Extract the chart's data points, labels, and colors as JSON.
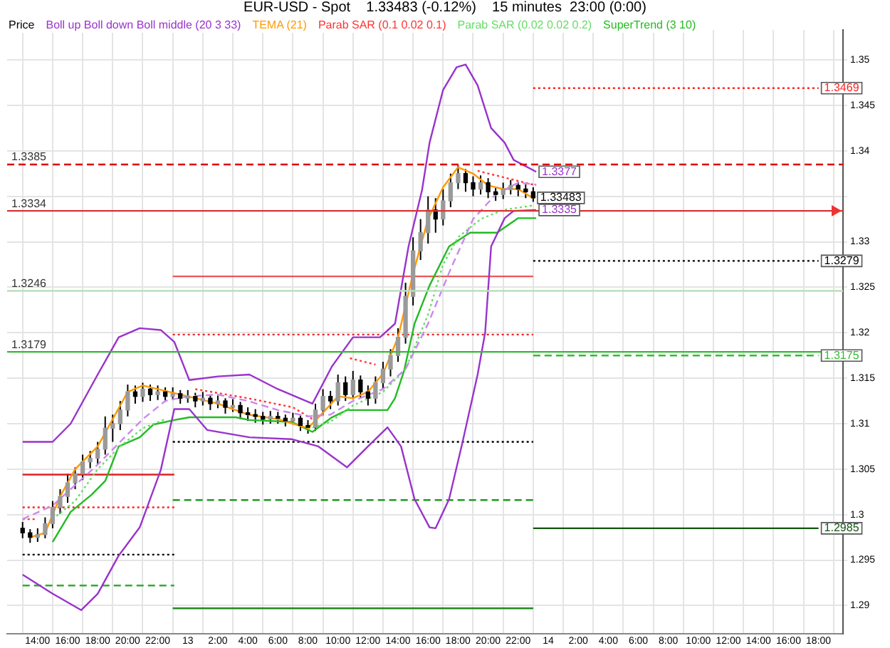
{
  "chart_data": {
    "type": "candlestick",
    "title": "EUR-USD - Spot    1.33483 (-0.12%)    15 minutes  23:00 (0:00)",
    "xlim": [
      "--01-12T13:00",
      "--01-14T18:36"
    ],
    "ylim": [
      1.2869,
      1.3533
    ],
    "xticks": [
      {
        "value": "--01-12T14:00",
        "label": "14:00"
      },
      {
        "value": "--01-12T16:00",
        "label": "16:00"
      },
      {
        "value": "--01-12T18:00",
        "label": "18:00"
      },
      {
        "value": "--01-12T20:00",
        "label": "20:00"
      },
      {
        "value": "--01-12T22:00",
        "label": "22:00"
      },
      {
        "value": "--01-13T00:00",
        "label": "13"
      },
      {
        "value": "--01-13T02:00",
        "label": "2:00"
      },
      {
        "value": "--01-13T04:00",
        "label": "4:00"
      },
      {
        "value": "--01-13T06:00",
        "label": "6:00"
      },
      {
        "value": "--01-13T08:00",
        "label": "8:00"
      },
      {
        "value": "--01-13T10:00",
        "label": "10:00"
      },
      {
        "value": "--01-13T12:00",
        "label": "12:00"
      },
      {
        "value": "--01-13T14:00",
        "label": "14:00"
      },
      {
        "value": "--01-13T16:00",
        "label": "16:00"
      },
      {
        "value": "--01-13T18:00",
        "label": "18:00"
      },
      {
        "value": "--01-13T20:00",
        "label": "20:00"
      },
      {
        "value": "--01-13T22:00",
        "label": "22:00"
      },
      {
        "value": "--01-14T00:00",
        "label": "14"
      },
      {
        "value": "--01-14T02:00",
        "label": "2:00"
      },
      {
        "value": "--01-14T04:00",
        "label": "4:00"
      },
      {
        "value": "--01-14T06:00",
        "label": "6:00"
      },
      {
        "value": "--01-14T08:00",
        "label": "8:00"
      },
      {
        "value": "--01-14T10:00",
        "label": "10:00"
      },
      {
        "value": "--01-14T12:00",
        "label": "12:00"
      },
      {
        "value": "--01-14T14:00",
        "label": "14:00"
      },
      {
        "value": "--01-14T16:00",
        "label": "16:00"
      },
      {
        "value": "--01-14T18:00",
        "label": "18:00"
      }
    ],
    "yticks": [
      1.29,
      1.295,
      1.3,
      1.305,
      1.31,
      1.315,
      1.32,
      1.325,
      1.33,
      {
        "value": 1.335,
        "label": null
      },
      1.34,
      1.345,
      1.35
    ],
    "grid": true,
    "legend": "top left",
    "marker": "none",
    "series": [
      {
        "name": "Price",
        "type": "candlestick",
        "color": "#000000",
        "colors": [
          "#000000",
          "#000000",
          "#9a9a9a",
          "#9a9a9a",
          "#9a9a9a",
          "#9a9a9a",
          "#9a9a9a",
          "#9a9a9a",
          "#9a9a9a",
          "#9a9a9a",
          "#9a9a9a",
          "#9a9a9a",
          "#9a9a9a",
          "#9a9a9a",
          "#9a9a9a",
          "#000000",
          "#9a9a9a",
          "#000000",
          "#9a9a9a",
          "#000000",
          "#9a9a9a",
          "#000000",
          "#9a9a9a",
          "#000000",
          "#9a9a9a",
          "#000000",
          "#9a9a9a",
          "#000000",
          "#9a9a9a",
          "#000000",
          "#000000",
          "#000000",
          "#000000",
          "#9a9a9a",
          "#000000",
          "#000000",
          "#9a9a9a",
          "#000000",
          "#000000",
          "#9a9a9a",
          "#9a9a9a",
          "#000000",
          "#9a9a9a",
          "#000000",
          "#9a9a9a",
          "#000000",
          "#000000",
          "#9a9a9a",
          "#9a9a9a",
          "#9a9a9a",
          "#9a9a9a",
          "#9a9a9a",
          "#9a9a9a",
          "#9a9a9a",
          "#9a9a9a",
          "#000000",
          "#9a9a9a",
          "#9a9a9a",
          "#9a9a9a",
          "#000000",
          "#000000",
          "#9a9a9a",
          "#000000",
          "#000000",
          "#9a9a9a",
          "#9a9a9a",
          "#000000",
          "#000000",
          "#000000"
        ],
        "x": [
          "--01-12T13:00",
          "--01-12T13:30",
          "--01-12T14:00",
          "--01-12T14:30",
          "--01-12T15:00",
          "--01-12T15:30",
          "--01-12T16:00",
          "--01-12T16:30",
          "--01-12T17:00",
          "--01-12T17:30",
          "--01-12T18:00",
          "--01-12T18:30",
          "--01-12T19:00",
          "--01-12T19:30",
          "--01-12T20:00",
          "--01-12T20:30",
          "--01-12T21:00",
          "--01-12T21:30",
          "--01-12T22:00",
          "--01-12T22:30",
          "--01-12T23:00",
          "--01-12T23:30",
          "--01-13T00:00",
          "--01-13T00:30",
          "--01-13T01:00",
          "--01-13T01:30",
          "--01-13T02:00",
          "--01-13T02:30",
          "--01-13T03:00",
          "--01-13T03:30",
          "--01-13T04:00",
          "--01-13T04:30",
          "--01-13T05:00",
          "--01-13T05:30",
          "--01-13T06:00",
          "--01-13T06:30",
          "--01-13T07:00",
          "--01-13T07:30",
          "--01-13T08:00",
          "--01-13T08:30",
          "--01-13T09:00",
          "--01-13T09:30",
          "--01-13T10:00",
          "--01-13T10:30",
          "--01-13T11:00",
          "--01-13T11:30",
          "--01-13T12:00",
          "--01-13T12:30",
          "--01-13T13:00",
          "--01-13T13:30",
          "--01-13T14:00",
          "--01-13T14:30",
          "--01-13T15:00",
          "--01-13T15:30",
          "--01-13T16:00",
          "--01-13T16:30",
          "--01-13T17:00",
          "--01-13T17:30",
          "--01-13T18:00",
          "--01-13T18:30",
          "--01-13T19:00",
          "--01-13T19:30",
          "--01-13T20:00",
          "--01-13T20:30",
          "--01-13T21:00",
          "--01-13T21:30",
          "--01-13T22:00",
          "--01-13T22:30",
          "--01-13T23:00"
        ],
        "ohlc": [
          [
            1.2985,
            1.2992,
            1.2974,
            1.298
          ],
          [
            1.298,
            1.2984,
            1.2969,
            1.2975
          ],
          [
            1.2975,
            1.2985,
            1.297,
            1.2978
          ],
          [
            1.2978,
            1.2997,
            1.2974,
            1.299
          ],
          [
            1.299,
            1.3015,
            1.2985,
            1.3008
          ],
          [
            1.3008,
            1.3028,
            1.3001,
            1.302
          ],
          [
            1.302,
            1.3045,
            1.3013,
            1.3035
          ],
          [
            1.3035,
            1.3052,
            1.3028,
            1.3045
          ],
          [
            1.3045,
            1.3066,
            1.3038,
            1.3058
          ],
          [
            1.3058,
            1.307,
            1.3051,
            1.3062
          ],
          [
            1.3062,
            1.308,
            1.3055,
            1.3072
          ],
          [
            1.3072,
            1.3108,
            1.3066,
            1.3095
          ],
          [
            1.3095,
            1.311,
            1.308,
            1.31
          ],
          [
            1.31,
            1.3125,
            1.3093,
            1.3115
          ],
          [
            1.3115,
            1.3143,
            1.3108,
            1.3135
          ],
          [
            1.3135,
            1.3142,
            1.3122,
            1.313
          ],
          [
            1.313,
            1.3145,
            1.3124,
            1.3138
          ],
          [
            1.3138,
            1.3143,
            1.3125,
            1.3132
          ],
          [
            1.3132,
            1.3142,
            1.3126,
            1.3135
          ],
          [
            1.3135,
            1.314,
            1.3124,
            1.313
          ],
          [
            1.313,
            1.314,
            1.3126,
            1.3133
          ],
          [
            1.3133,
            1.3137,
            1.3122,
            1.3128
          ],
          [
            1.3128,
            1.3137,
            1.3123,
            1.313
          ],
          [
            1.313,
            1.3134,
            1.3118,
            1.3125
          ],
          [
            1.3125,
            1.3135,
            1.312,
            1.3128
          ],
          [
            1.3128,
            1.3132,
            1.3115,
            1.3122
          ],
          [
            1.3122,
            1.3131,
            1.3117,
            1.3125
          ],
          [
            1.3125,
            1.3128,
            1.3111,
            1.3118
          ],
          [
            1.3118,
            1.3127,
            1.3113,
            1.312
          ],
          [
            1.312,
            1.3124,
            1.3105,
            1.3112
          ],
          [
            1.3112,
            1.3118,
            1.3103,
            1.311
          ],
          [
            1.311,
            1.3116,
            1.3101,
            1.3108
          ],
          [
            1.3108,
            1.3113,
            1.3099,
            1.3105
          ],
          [
            1.3105,
            1.3114,
            1.31,
            1.3108
          ],
          [
            1.3108,
            1.3113,
            1.31,
            1.3106
          ],
          [
            1.3106,
            1.311,
            1.3097,
            1.3103
          ],
          [
            1.3103,
            1.3112,
            1.3099,
            1.3106
          ],
          [
            1.3106,
            1.3109,
            1.3092,
            1.3098
          ],
          [
            1.3098,
            1.3104,
            1.3089,
            1.3096
          ],
          [
            1.3096,
            1.3122,
            1.3092,
            1.3115
          ],
          [
            1.3115,
            1.3138,
            1.3109,
            1.313
          ],
          [
            1.313,
            1.3136,
            1.3116,
            1.3125
          ],
          [
            1.3125,
            1.3154,
            1.312,
            1.3145
          ],
          [
            1.3145,
            1.3152,
            1.3125,
            1.3132
          ],
          [
            1.3132,
            1.3158,
            1.3127,
            1.3148
          ],
          [
            1.3148,
            1.3153,
            1.3128,
            1.3135
          ],
          [
            1.3135,
            1.3142,
            1.312,
            1.3128
          ],
          [
            1.3128,
            1.3152,
            1.3122,
            1.3145
          ],
          [
            1.3145,
            1.3168,
            1.3138,
            1.316
          ],
          [
            1.316,
            1.3182,
            1.3152,
            1.3175
          ],
          [
            1.3175,
            1.3205,
            1.3168,
            1.3195
          ],
          [
            1.3195,
            1.3255,
            1.3188,
            1.324
          ],
          [
            1.324,
            1.3305,
            1.323,
            1.329
          ],
          [
            1.329,
            1.3325,
            1.328,
            1.331
          ],
          [
            1.331,
            1.335,
            1.3298,
            1.3335
          ],
          [
            1.3335,
            1.3348,
            1.331,
            1.3325
          ],
          [
            1.3325,
            1.3358,
            1.3318,
            1.3345
          ],
          [
            1.3345,
            1.3375,
            1.3338,
            1.3365
          ],
          [
            1.3365,
            1.3384,
            1.3358,
            1.3375
          ],
          [
            1.3375,
            1.338,
            1.3355,
            1.3365
          ],
          [
            1.3365,
            1.3372,
            1.335,
            1.3358
          ],
          [
            1.3358,
            1.3373,
            1.3352,
            1.3365
          ],
          [
            1.3365,
            1.337,
            1.3348,
            1.3355
          ],
          [
            1.3355,
            1.336,
            1.3345,
            1.3352
          ],
          [
            1.3352,
            1.3365,
            1.3347,
            1.3358
          ],
          [
            1.3358,
            1.3368,
            1.3352,
            1.3362
          ],
          [
            1.3362,
            1.3366,
            1.335,
            1.3358
          ],
          [
            1.3358,
            1.3363,
            1.3348,
            1.3355
          ],
          [
            1.3355,
            1.336,
            1.3344,
            1.33483
          ]
        ],
        "value_labels": [
          null,
          null,
          null,
          null,
          null,
          null,
          null,
          null,
          null,
          null,
          null,
          null,
          null,
          null,
          null,
          null,
          null,
          null,
          null,
          null,
          null,
          null,
          null,
          null,
          null,
          null,
          null,
          null,
          null,
          null,
          null,
          null,
          null,
          null,
          null,
          null,
          null,
          null,
          null,
          null,
          null,
          null,
          null,
          null,
          null,
          null,
          null,
          null,
          null,
          null,
          null,
          null,
          null,
          null,
          null,
          null,
          null,
          null,
          null,
          null,
          null,
          null,
          null,
          null,
          null,
          null,
          null,
          null,
          "1.33483"
        ]
      },
      {
        "name": "Boll up Boll down Boll middle (20 3 33)",
        "type": "line",
        "color": "#9933cc",
        "x": [
          "--01-12T13:00",
          "--01-12T15:00",
          "--01-12T16:12",
          "--01-12T18:00",
          "--01-12T19:24",
          "--01-12T20:48",
          "--01-12T22:12",
          "--01-12T23:06",
          "--01-13T00:06",
          "--01-13T02:00",
          "--01-13T04:06",
          "--01-13T06:00",
          "--01-13T08:18",
          "--01-13T09:36",
          "--01-13T11:00",
          "--01-13T12:48",
          "--01-13T13:48",
          "--01-13T14:42",
          "--01-13T15:36",
          "--01-13T16:06",
          "--01-13T17:00",
          "--01-13T17:54",
          "--01-13T18:30",
          "--01-13T19:18",
          "--01-13T20:12",
          "--01-13T21:06",
          "--01-13T21:42",
          "--01-13T23:12"
        ],
        "values": [
          1.308,
          1.308,
          1.31,
          1.3154,
          1.3195,
          1.3205,
          1.3203,
          1.319,
          1.3148,
          1.3152,
          1.3154,
          1.3138,
          1.3122,
          1.3163,
          1.3195,
          1.3195,
          1.321,
          1.3295,
          1.3357,
          1.3409,
          1.3467,
          1.3492,
          1.3495,
          1.3472,
          1.3425,
          1.3409,
          1.339,
          1.3377
        ],
        "value_labels": [
          null,
          null,
          null,
          null,
          null,
          null,
          null,
          null,
          null,
          null,
          null,
          null,
          null,
          null,
          null,
          null,
          null,
          null,
          null,
          null,
          null,
          null,
          null,
          null,
          null,
          null,
          null,
          "1.3377"
        ]
      },
      {
        "type": "line",
        "color": "#9933cc",
        "x": [
          "--01-12T13:00",
          "--01-12T15:00",
          "--01-12T16:54",
          "--01-12T18:00",
          "--01-12T19:24",
          "--01-12T20:48",
          "--01-12T22:12",
          "--01-12T23:06",
          "--01-13T00:06",
          "--01-13T01:18",
          "--01-13T04:06",
          "--01-13T06:54",
          "--01-13T08:42",
          "--01-13T10:36",
          "--01-13T12:00",
          "--01-13T13:18",
          "--01-13T14:12",
          "--01-13T15:06",
          "--01-13T16:06",
          "--01-13T16:30",
          "--01-13T17:24",
          "--01-13T18:18",
          "--01-13T19:18",
          "--01-13T19:48",
          "--01-13T20:12",
          "--01-13T21:06",
          "--01-13T21:42",
          "--01-13T23:12"
        ],
        "values": [
          1.2934,
          1.2913,
          1.2895,
          1.2913,
          1.2955,
          1.2986,
          1.3049,
          1.3116,
          1.3116,
          1.3093,
          1.3085,
          1.3083,
          1.3075,
          1.3052,
          1.3075,
          1.3096,
          1.3075,
          1.3017,
          1.2986,
          1.2985,
          1.3017,
          1.308,
          1.3154,
          1.32,
          1.3295,
          1.3326,
          1.3334,
          1.3335
        ],
        "value_labels": [
          null,
          null,
          null,
          null,
          null,
          null,
          null,
          null,
          null,
          null,
          null,
          null,
          null,
          null,
          null,
          null,
          null,
          null,
          null,
          null,
          null,
          null,
          null,
          null,
          null,
          null,
          null,
          "1.3335"
        ]
      },
      {
        "type": "line",
        "color": "#cc88ee",
        "line_style": "dashed",
        "x": [
          "--01-12T13:00",
          "--01-12T15:00",
          "--01-12T16:00",
          "--01-12T18:00",
          "--01-12T19:30",
          "--01-12T21:00",
          "--01-12T22:30",
          "--01-13T00:00",
          "--01-13T02:00",
          "--01-13T04:00",
          "--01-13T06:00",
          "--01-13T08:00",
          "--01-13T09:30",
          "--01-13T11:00",
          "--01-13T13:00",
          "--01-13T14:30",
          "--01-13T16:00",
          "--01-13T17:30",
          "--01-13T19:00",
          "--01-13T20:30",
          "--01-13T22:00",
          "--01-13T23:12"
        ],
        "values": [
          1.2995,
          1.301,
          1.3025,
          1.3055,
          1.308,
          1.3105,
          1.3125,
          1.313,
          1.3132,
          1.3125,
          1.3115,
          1.3108,
          1.311,
          1.3125,
          1.3138,
          1.316,
          1.321,
          1.327,
          1.3325,
          1.3352,
          1.3365,
          1.3363
        ]
      },
      {
        "name": "TEMA (21)",
        "type": "line",
        "color": "#ff9900",
        "x": [
          "--01-12T13:30",
          "--01-12T14:30",
          "--01-12T15:30",
          "--01-12T16:30",
          "--01-12T18:00",
          "--01-12T19:00",
          "--01-12T20:00",
          "--01-12T21:00",
          "--01-12T22:00",
          "--01-13T00:00",
          "--01-13T02:00",
          "--01-13T04:00",
          "--01-13T06:00",
          "--01-13T08:00",
          "--01-13T09:00",
          "--01-13T10:00",
          "--01-13T11:00",
          "--01-13T12:00",
          "--01-13T13:00",
          "--01-13T14:00",
          "--01-13T15:00",
          "--01-13T16:00",
          "--01-13T17:00",
          "--01-13T18:00",
          "--01-13T19:00",
          "--01-13T20:00",
          "--01-13T21:00",
          "--01-13T22:00",
          "--01-13T23:00"
        ],
        "values": [
          1.2975,
          1.298,
          1.302,
          1.305,
          1.3075,
          1.3105,
          1.3135,
          1.3142,
          1.3138,
          1.313,
          1.3122,
          1.311,
          1.3105,
          1.3095,
          1.3112,
          1.313,
          1.3128,
          1.3135,
          1.3155,
          1.3195,
          1.3265,
          1.3325,
          1.336,
          1.3382,
          1.3375,
          1.3362,
          1.3358,
          1.3358,
          1.3348
        ]
      },
      {
        "name": "Parab SAR (0.1 0.02 0.1)",
        "type": "line",
        "color": "#ff3333",
        "line_style": "dotted",
        "x": [
          "--01-12T13:00",
          "--01-12T14:00",
          "--01-12T14:06",
          "--01-13T00:30",
          "--01-13T04:00",
          "--01-13T07:00",
          "--01-13T08:18",
          "--01-13T08:24",
          "--01-13T10:48",
          "--01-13T12:30",
          "--01-13T12:36",
          "--01-13T19:18",
          "--01-13T23:12"
        ],
        "values": [
          1.2995,
          1.2995,
          null,
          1.3138,
          1.3128,
          1.3118,
          1.3105,
          null,
          1.3172,
          1.3165,
          null,
          1.3378,
          1.3362
        ]
      },
      {
        "name": "Parab SAR (0.02 0.02 0.2)",
        "type": "line",
        "color": "#66dd66",
        "line_style": "dotted",
        "x": [
          "--01-12T15:00",
          "--01-12T16:30",
          "--01-12T18:00",
          "--01-12T19:30",
          "--01-12T21:00",
          "--01-12T22:30",
          "--01-12T22:36",
          "--01-13T08:00",
          "--01-13T09:30",
          "--01-13T11:00",
          "--01-13T13:00",
          "--01-13T14:30",
          "--01-13T16:00",
          "--01-13T17:00",
          "--01-13T18:00",
          "--01-13T19:30",
          "--01-13T21:00",
          "--01-13T23:00"
        ],
        "values": [
          1.2995,
          1.3015,
          1.305,
          1.3075,
          1.3095,
          1.3105,
          null,
          1.3094,
          1.3102,
          1.312,
          1.3135,
          1.316,
          1.322,
          1.3275,
          1.3305,
          1.3325,
          1.3335,
          1.334
        ]
      },
      {
        "name": "SuperTrend (3 10)",
        "type": "line",
        "color": "#22bb22",
        "x": [
          "--01-12T15:00",
          "--01-12T16:12",
          "--01-12T17:36",
          "--01-12T18:30",
          "--01-12T19:24",
          "--01-12T20:48",
          "--01-12T21:42",
          "--01-12T23:06",
          "--01-13T00:06",
          "--01-13T03:12",
          "--01-13T04:06",
          "--01-13T06:54",
          "--01-13T08:18",
          "--01-13T09:36",
          "--01-13T10:36",
          "--01-13T13:18",
          "--01-13T13:48",
          "--01-13T14:24",
          "--01-13T15:06",
          "--01-13T16:06",
          "--01-13T17:24",
          "--01-13T18:48",
          "--01-13T20:36",
          "--01-13T22:00",
          "--01-13T23:12"
        ],
        "values": [
          1.297,
          1.3003,
          1.3022,
          1.3037,
          1.3075,
          1.3085,
          1.3099,
          1.3104,
          1.3107,
          1.3107,
          1.3104,
          1.3102,
          1.3091,
          1.3107,
          1.3115,
          1.3115,
          1.3128,
          1.3158,
          1.321,
          1.3252,
          1.3295,
          1.331,
          1.331,
          1.3326,
          1.3326
        ]
      },
      {
        "type": "line",
        "color": "#dd2222",
        "x": [
          "--01-12T13:00",
          "--01-12T23:06"
        ],
        "values": [
          1.3044,
          1.3044
        ]
      },
      {
        "type": "line",
        "color": "#ff2222",
        "line_style": "dotted",
        "x": [
          "--01-12T13:00",
          "--01-12T23:06"
        ],
        "values": [
          1.3008,
          1.3008
        ]
      },
      {
        "type": "line",
        "color": "#000000",
        "line_style": "dotted",
        "x": [
          "--01-12T13:00",
          "--01-12T23:06"
        ],
        "values": [
          1.2956,
          1.2956
        ]
      },
      {
        "type": "line",
        "color": "#33aa33",
        "line_style": "dashed",
        "x": [
          "--01-12T13:00",
          "--01-12T23:06"
        ],
        "values": [
          1.2922,
          1.2922
        ]
      },
      {
        "type": "line",
        "color": "#ee5555",
        "x": [
          "--01-12T23:00",
          "--01-13T23:00"
        ],
        "values": [
          1.3262,
          1.3262
        ]
      },
      {
        "type": "line",
        "color": "#ee2222",
        "line_style": "dotted",
        "x": [
          "--01-12T23:00",
          "--01-13T23:00"
        ],
        "values": [
          1.3198,
          1.3198
        ]
      },
      {
        "type": "line",
        "color": "#000000",
        "line_style": "dotted",
        "x": [
          "--01-12T23:00",
          "--01-13T23:00"
        ],
        "values": [
          1.308,
          1.308
        ]
      },
      {
        "type": "line",
        "color": "#229922",
        "line_style": "dashed",
        "x": [
          "--01-12T23:00",
          "--01-13T23:00"
        ],
        "values": [
          1.3016,
          1.3016
        ]
      },
      {
        "type": "line",
        "color": "#228822",
        "x": [
          "--01-12T23:00",
          "--01-13T23:00"
        ],
        "values": [
          1.2897,
          1.2897
        ]
      },
      {
        "type": "line",
        "color": "#ff2222",
        "line_style": "dotted",
        "x": [
          "--01-13T23:00",
          "--01-14T18:00"
        ],
        "values": [
          1.3469,
          1.3469
        ],
        "value_labels": [
          null,
          "1.3469"
        ]
      },
      {
        "type": "line",
        "color": "#000000",
        "line_style": "dotted",
        "x": [
          "--01-13T23:00",
          "--01-14T18:00"
        ],
        "values": [
          1.3279,
          1.3279
        ],
        "value_labels": [
          null,
          "1.3279"
        ]
      },
      {
        "type": "line",
        "color": "#33bb33",
        "line_style": "dashed",
        "x": [
          "--01-13T23:00",
          "--01-14T18:00"
        ],
        "values": [
          1.3175,
          1.3175
        ],
        "value_labels": [
          null,
          "1.3175"
        ]
      },
      {
        "type": "line",
        "color": "#115511",
        "x": [
          "--01-13T23:00",
          "--01-14T18:00"
        ],
        "values": [
          1.2985,
          1.2985
        ],
        "value_labels": [
          null,
          "1.2985"
        ]
      }
    ],
    "ref_lines": [
      {
        "axis": "y",
        "value": 1.3385,
        "label": "1.3385",
        "color": "#dd0000",
        "line_style": "dashed"
      },
      {
        "axis": "y",
        "value": 1.3334,
        "label": "1.3334",
        "color": "#dd3333",
        "line_style": "solid"
      },
      {
        "axis": "y",
        "value": 1.3246,
        "label": "1.3246",
        "color": "#b8e0b8",
        "line_style": "solid"
      },
      {
        "axis": "y",
        "value": 1.3179,
        "label": "1.3179",
        "color": "#33bb33",
        "line_style": "solid"
      }
    ]
  }
}
